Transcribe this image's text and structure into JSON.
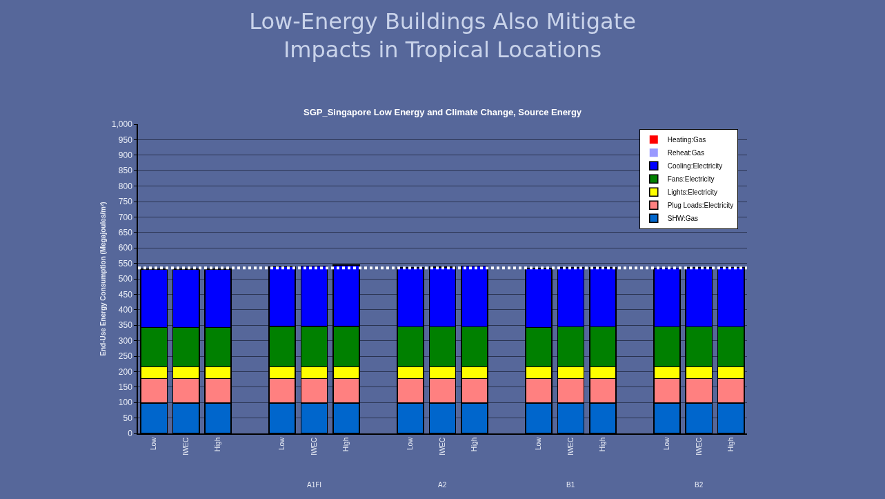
{
  "chart_data": {
    "type": "bar",
    "stacked": true,
    "title": "Low-Energy Buildings Also Mitigate Impacts in Tropical Locations",
    "subtitle": "SGP_Singapore Low Energy and Climate Change, Source Energy",
    "ylabel": "End-Use Energy Consumption (Megajoules/m²)",
    "categories": [
      "Low",
      "IWEC",
      "High",
      null,
      "Low",
      "IWEC",
      "High",
      null,
      "Low",
      "IWEC",
      "High",
      null,
      "Low",
      "IWEC",
      "High",
      null,
      "Low",
      "IWEC",
      "High"
    ],
    "series": [
      {
        "name": "SHW:Gas",
        "color": "#0066cc",
        "values": [
          98,
          98,
          98,
          null,
          98,
          98,
          98,
          null,
          98,
          98,
          98,
          null,
          98,
          98,
          98,
          null,
          98,
          98,
          98
        ]
      },
      {
        "name": "Plug Loads:Electricity",
        "color": "#ff8080",
        "values": [
          80,
          80,
          80,
          null,
          80,
          80,
          80,
          null,
          80,
          80,
          80,
          null,
          80,
          80,
          80,
          null,
          80,
          80,
          80
        ]
      },
      {
        "name": "Lights:Electricity",
        "color": "#ffff00",
        "values": [
          37,
          37,
          37,
          null,
          37,
          37,
          37,
          null,
          37,
          37,
          37,
          null,
          37,
          37,
          37,
          null,
          37,
          37,
          37
        ]
      },
      {
        "name": "Fans:Electricity",
        "color": "#008000",
        "values": [
          128,
          128,
          128,
          null,
          131,
          131,
          131,
          null,
          130,
          130,
          130,
          null,
          128,
          130,
          130,
          null,
          130,
          130,
          130
        ]
      },
      {
        "name": "Cooling:Electricity",
        "color": "#0000ff",
        "values": [
          188,
          188,
          188,
          null,
          193,
          195,
          199,
          null,
          191,
          193,
          196,
          null,
          191,
          191,
          191,
          null,
          190,
          191,
          192
        ]
      },
      {
        "name": "Reheat:Gas",
        "color": "#9999ff",
        "values": [
          0,
          0,
          0,
          null,
          0,
          0,
          0,
          null,
          0,
          0,
          0,
          null,
          0,
          0,
          0,
          null,
          0,
          0,
          0
        ]
      },
      {
        "name": "Heating:Gas",
        "color": "#ff0000",
        "values": [
          0,
          0,
          0,
          null,
          0,
          0,
          0,
          null,
          0,
          0,
          0,
          null,
          0,
          0,
          0,
          null,
          0,
          0,
          0
        ]
      }
    ],
    "annotations": [
      "A1FI",
      "A2",
      "B1",
      "B2"
    ],
    "ylim": [
      0,
      1000
    ],
    "yticks": [
      0,
      50,
      100,
      150,
      200,
      250,
      300,
      350,
      400,
      450,
      500,
      550,
      600,
      650,
      700,
      750,
      800,
      850,
      900,
      950,
      {
        "value": 1000,
        "label": "1,000"
      }
    ],
    "ref_lines": [
      {
        "axis": "y",
        "value": 535,
        "color": "#ffffff",
        "line_style": "dotted"
      }
    ],
    "grid": "y",
    "legend": "top right"
  }
}
